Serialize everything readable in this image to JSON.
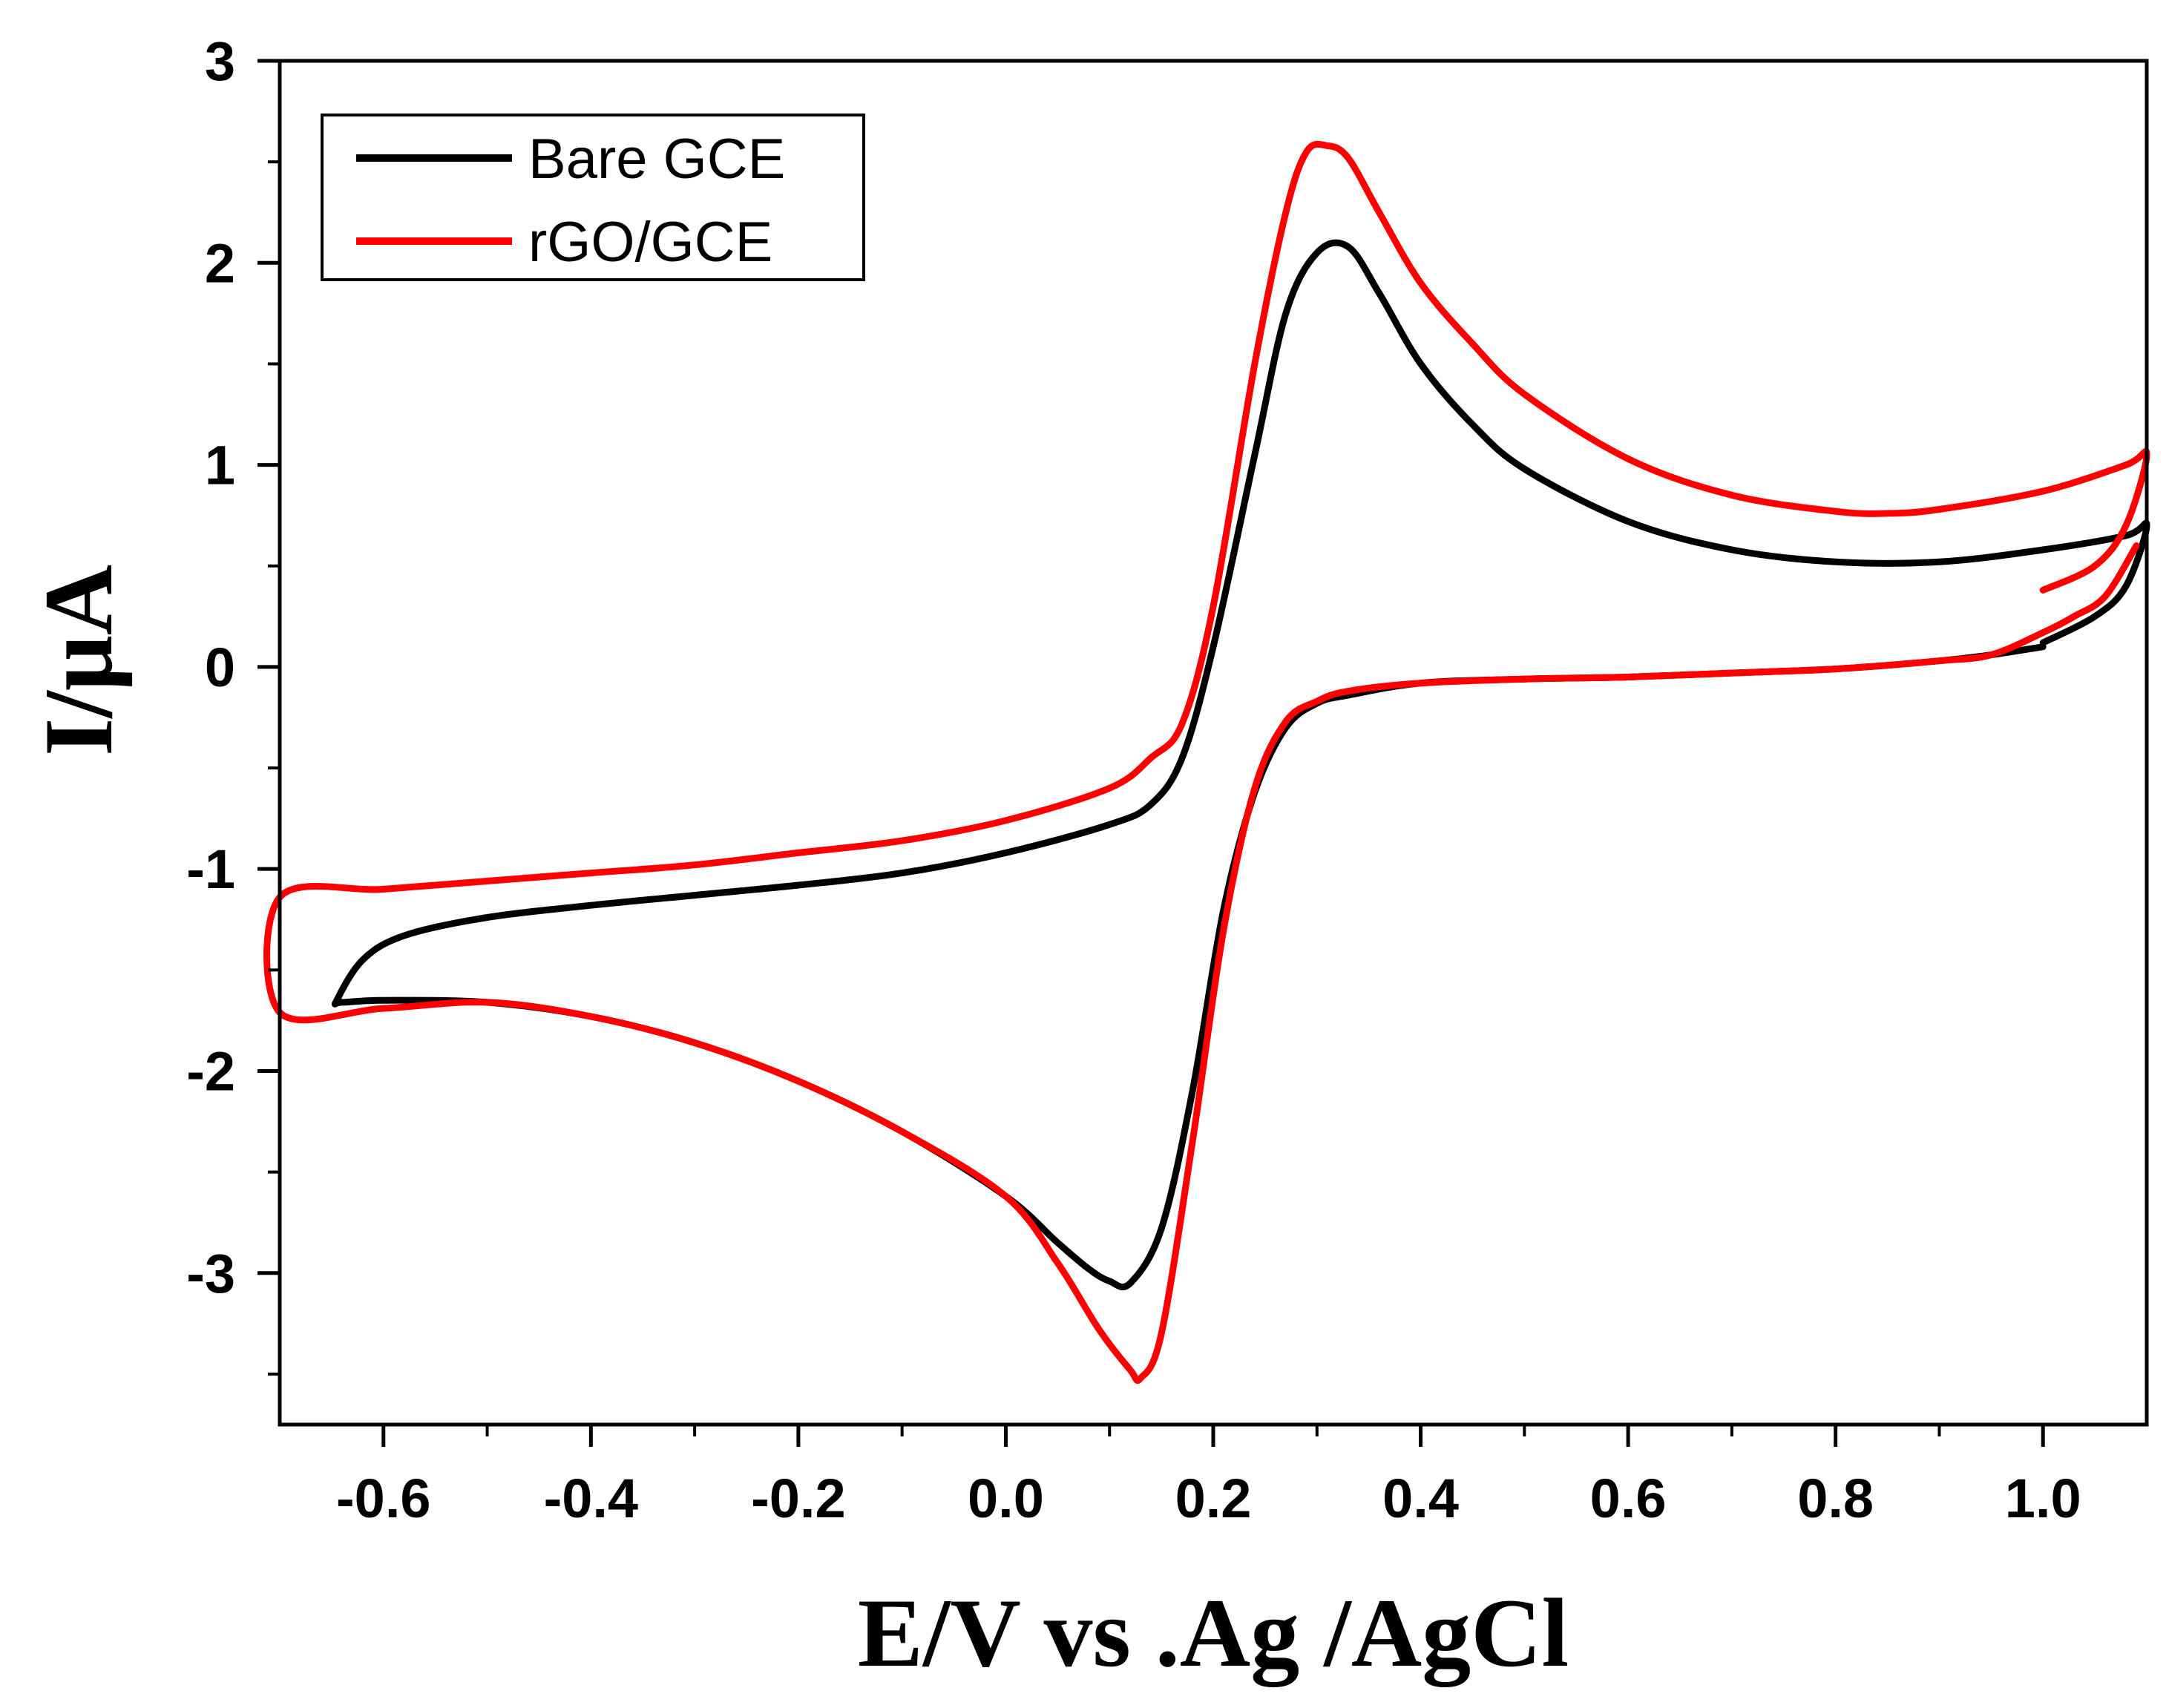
{
  "chart_data": {
    "type": "line",
    "title": "",
    "xlabel": "E/V vs .Ag /AgCl",
    "ylabel": "I/μA",
    "xlim": [
      -0.7,
      1.1
    ],
    "ylim": [
      -3.75,
      3
    ],
    "xticks": [
      -0.6,
      -0.4,
      -0.2,
      0.0,
      0.2,
      0.4,
      0.6,
      0.8,
      1.0
    ],
    "xtick_labels": [
      "-0.6",
      "-0.4",
      "-0.2",
      "0.0",
      "0.2",
      "0.4",
      "0.6",
      "0.8",
      "1.0"
    ],
    "yticks": [
      -3,
      -2,
      -1,
      0,
      1,
      2,
      3
    ],
    "ytick_labels": [
      "-3",
      "-2",
      "-1",
      "0",
      "1",
      "2",
      "3"
    ],
    "grid": false,
    "legend_position": "top-left",
    "series": [
      {
        "name": "Bare GCE",
        "color": "#000000",
        "x": [
          1.0,
          1.05,
          1.08,
          1.1,
          1.08,
          1.0,
          0.9,
          0.8,
          0.7,
          0.6,
          0.5,
          0.45,
          0.4,
          0.36,
          0.33,
          0.3,
          0.27,
          0.24,
          0.2,
          0.17,
          0.14,
          0.1,
          0.0,
          -0.1,
          -0.2,
          -0.3,
          -0.4,
          -0.5,
          -0.58,
          -0.62,
          -0.645,
          -0.64,
          -0.6,
          -0.5,
          -0.4,
          -0.3,
          -0.2,
          -0.1,
          0.0,
          0.05,
          0.08,
          0.1,
          0.12,
          0.15,
          0.18,
          0.21,
          0.24,
          0.27,
          0.3,
          0.33,
          0.4,
          0.5,
          0.6,
          0.7,
          0.8,
          0.9,
          0.95,
          1.0
        ],
        "y": [
          0.12,
          0.25,
          0.4,
          0.7,
          0.65,
          0.58,
          0.52,
          0.52,
          0.58,
          0.72,
          0.98,
          1.2,
          1.5,
          1.85,
          2.08,
          2.05,
          1.75,
          1.05,
          0.1,
          -0.45,
          -0.68,
          -0.78,
          -0.92,
          -1.02,
          -1.08,
          -1.13,
          -1.18,
          -1.24,
          -1.33,
          -1.45,
          -1.65,
          -1.66,
          -1.65,
          -1.66,
          -1.73,
          -1.86,
          -2.05,
          -2.3,
          -2.62,
          -2.85,
          -2.98,
          -3.04,
          -3.05,
          -2.78,
          -2.1,
          -1.2,
          -0.62,
          -0.3,
          -0.18,
          -0.14,
          -0.08,
          -0.06,
          -0.05,
          -0.03,
          -0.01,
          0.03,
          0.06,
          0.1
        ]
      },
      {
        "name": "rGO/GCE",
        "color": "#ff0000",
        "x": [
          1.0,
          1.05,
          1.08,
          1.1,
          1.08,
          1.0,
          0.9,
          0.85,
          0.8,
          0.7,
          0.6,
          0.5,
          0.45,
          0.4,
          0.36,
          0.33,
          0.31,
          0.29,
          0.27,
          0.24,
          0.2,
          0.17,
          0.14,
          0.1,
          0.0,
          -0.1,
          -0.2,
          -0.3,
          -0.4,
          -0.5,
          -0.6,
          -0.7,
          -0.7,
          -0.6,
          -0.5,
          -0.4,
          -0.3,
          -0.2,
          -0.1,
          0.0,
          0.05,
          0.09,
          0.12,
          0.13,
          0.15,
          0.18,
          0.21,
          0.24,
          0.27,
          0.3,
          0.33,
          0.4,
          0.5,
          0.6,
          0.7,
          0.8,
          0.9,
          0.95,
          1.0,
          1.03,
          1.06,
          1.09
        ],
        "y": [
          0.38,
          0.5,
          0.7,
          1.05,
          1.0,
          0.87,
          0.78,
          0.76,
          0.77,
          0.85,
          1.03,
          1.35,
          1.6,
          1.9,
          2.25,
          2.52,
          2.58,
          2.55,
          2.25,
          1.5,
          0.3,
          -0.28,
          -0.45,
          -0.6,
          -0.76,
          -0.86,
          -0.92,
          -0.98,
          -1.02,
          -1.06,
          -1.1,
          -1.14,
          -1.71,
          -1.69,
          -1.66,
          -1.73,
          -1.86,
          -2.05,
          -2.3,
          -2.62,
          -2.95,
          -3.28,
          -3.48,
          -3.52,
          -3.3,
          -2.35,
          -1.3,
          -0.6,
          -0.27,
          -0.17,
          -0.12,
          -0.08,
          -0.06,
          -0.05,
          -0.03,
          -0.01,
          0.03,
          0.06,
          0.17,
          0.25,
          0.35,
          0.6
        ]
      }
    ]
  }
}
